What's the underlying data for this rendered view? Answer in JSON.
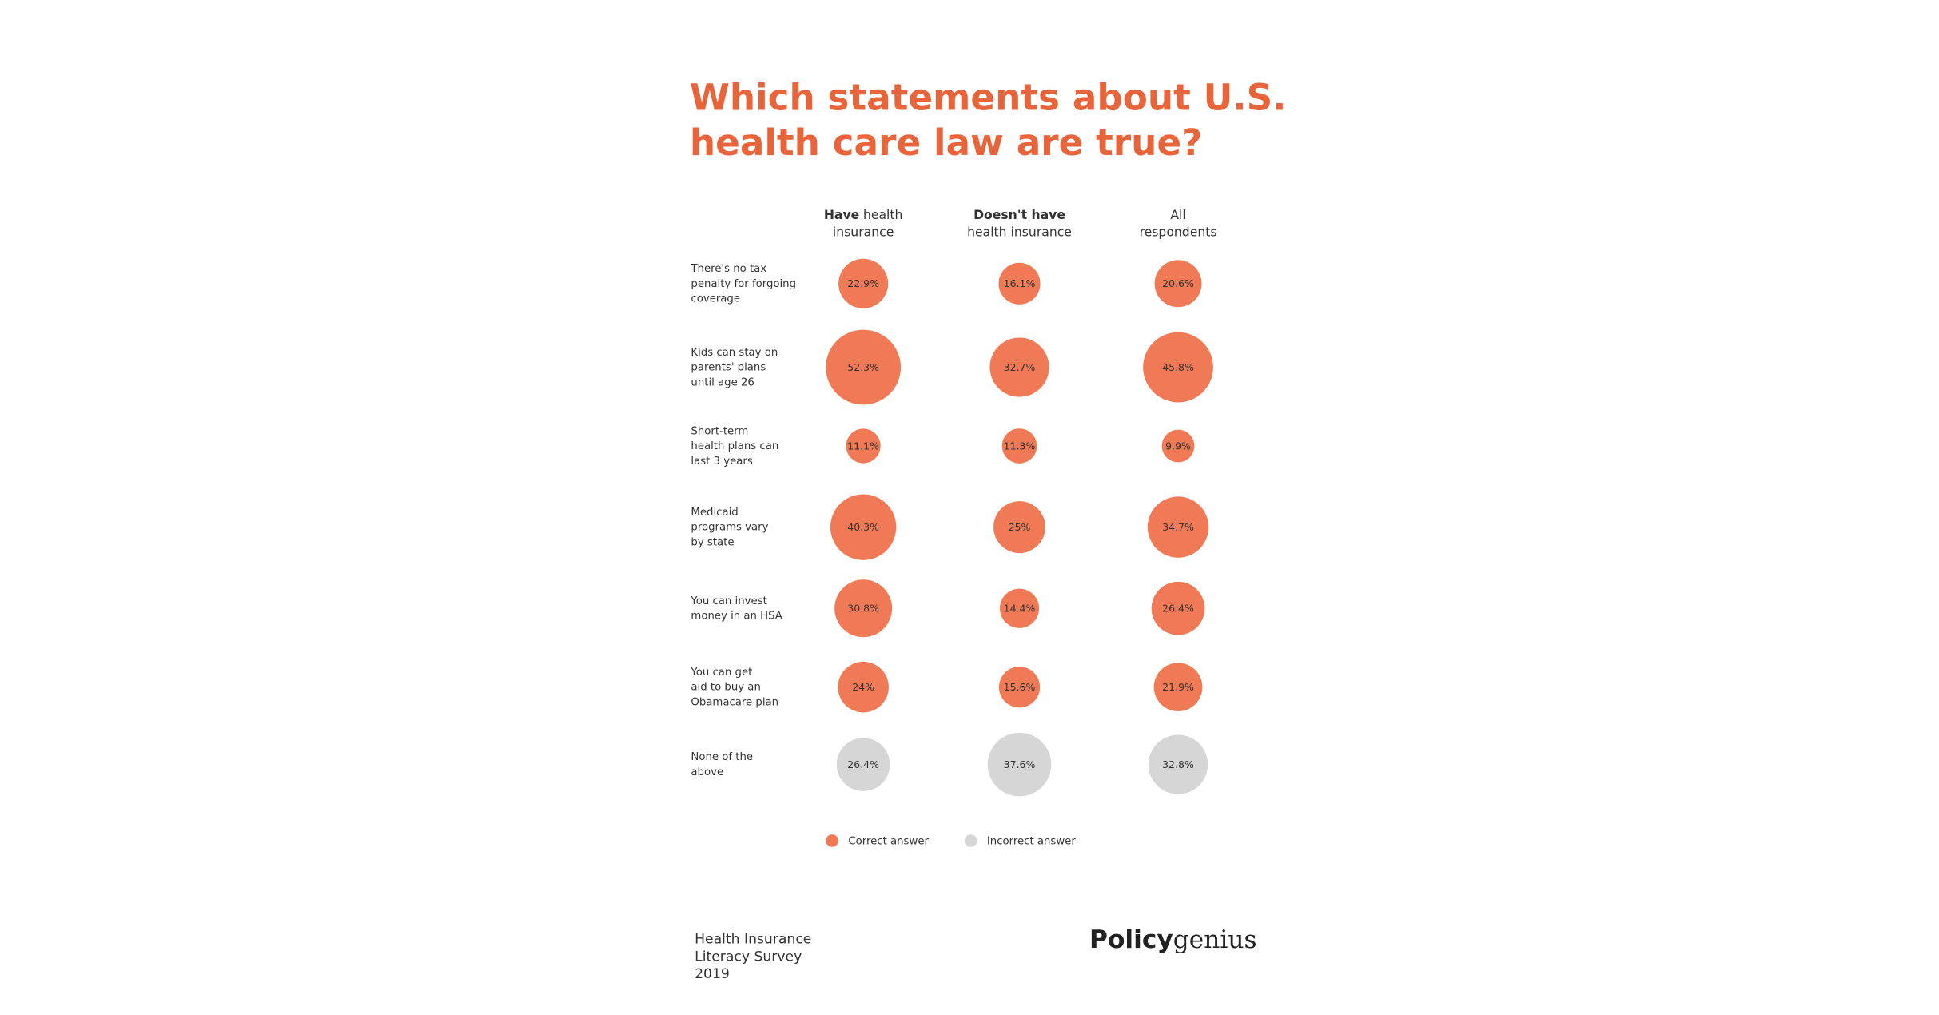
{
  "chart_data": {
    "type": "bubble",
    "title": [
      "Which statements about U.S.",
      "health care law are true?"
    ],
    "categories": [
      [
        "There's no tax",
        "penalty for forgoing",
        "coverage"
      ],
      [
        "Kids can stay on",
        "parents' plans",
        "until age 26"
      ],
      [
        "Short-term",
        "health plans can",
        "last 3 years"
      ],
      [
        "Medicaid",
        "programs vary",
        "by state"
      ],
      [
        "You can invest",
        "money in an HSA"
      ],
      [
        "You can get",
        "aid to buy an",
        "Obamacare plan"
      ],
      [
        "None of the",
        "above"
      ]
    ],
    "series": [
      {
        "header": [
          {
            "bold": "Have",
            "text": "health"
          },
          {
            "text": "insurance"
          }
        ],
        "values": [
          22.9,
          52.3,
          11.1,
          40.3,
          30.8,
          24,
          26.4
        ],
        "value_labels": [
          "22.9%",
          "52.3%",
          "11.1%",
          "40.3%",
          "30.8%",
          "24%",
          "26.4%"
        ]
      },
      {
        "header": [
          {
            "bold": "Doesn't have"
          },
          {
            "text": "health insurance"
          }
        ],
        "values": [
          16.1,
          32.7,
          11.3,
          25,
          14.4,
          15.6,
          37.6
        ],
        "value_labels": [
          "16.1%",
          "32.7%",
          "11.3%",
          "25%",
          "14.4%",
          "15.6%",
          "37.6%"
        ]
      },
      {
        "header": [
          {
            "text": "All"
          },
          {
            "text": "respondents"
          }
        ],
        "values": [
          20.6,
          45.8,
          9.9,
          34.7,
          26.4,
          21.9,
          32.8
        ],
        "value_labels": [
          "20.6%",
          "45.8%",
          "9.9%",
          "34.7%",
          "26.4%",
          "21.9%",
          "32.8%"
        ]
      }
    ],
    "legend": [
      {
        "label": "Correct answer",
        "color": "#ef7a55"
      },
      {
        "label": "Incorrect answer",
        "color": "#d6d6d6"
      }
    ],
    "row_legend": [
      0,
      0,
      0,
      0,
      0,
      0,
      1
    ],
    "source": [
      "Health Insurance",
      "Literacy Survey",
      "2019"
    ],
    "logo": {
      "bold": "Policy",
      "text": "genius"
    }
  }
}
